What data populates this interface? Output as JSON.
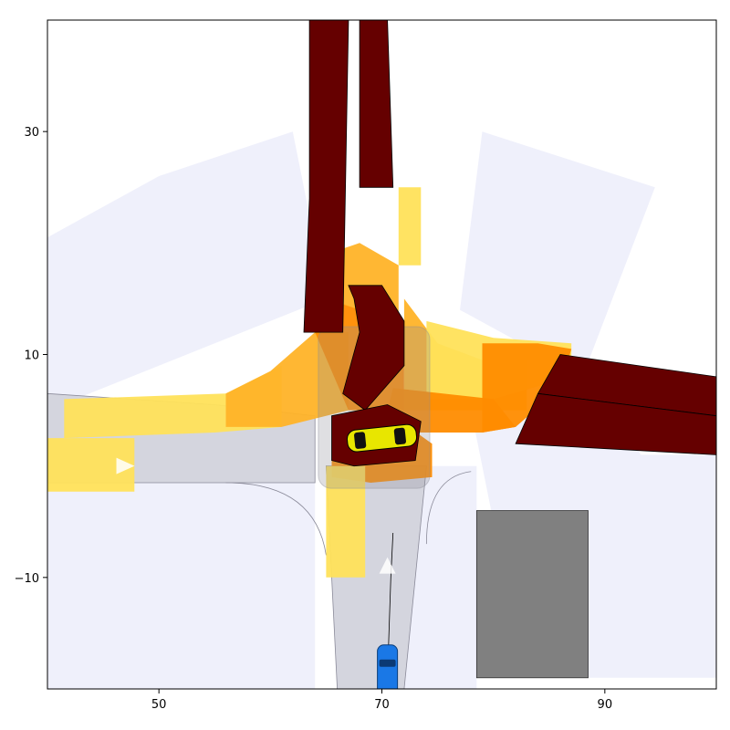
{
  "chart_data": {
    "type": "scatter",
    "title": "",
    "xlabel": "",
    "ylabel": "",
    "xlim": [
      40,
      100
    ],
    "ylim": [
      -20,
      40
    ],
    "x_ticks": [
      50,
      70,
      90
    ],
    "y_ticks": [
      30,
      10,
      -10
    ],
    "x_tick_labels": [
      "50",
      "70",
      "90"
    ],
    "y_tick_labels": [
      "30",
      "10",
      "−10"
    ],
    "grid": false,
    "colors": {
      "road": "#d4d5de",
      "lane_line": "#8a8a99",
      "sensor_fov": "#eff0fb",
      "occupancy_low": "#ffe15a",
      "occupancy_mid": "#ffb328",
      "occupancy_high": "#ff8c00",
      "occupied_dark": "#650000",
      "obstacle": "#808080",
      "ego_vehicle": "#1a78e6",
      "other_vehicle": "#e8e600",
      "marker": "#ffffff"
    },
    "road_polygons": [
      {
        "name": "west-road",
        "points": [
          [
            40,
            6.5
          ],
          [
            55,
            5.5
          ],
          [
            64,
            4.5
          ],
          [
            64,
            -1.5
          ],
          [
            55,
            -1.5
          ],
          [
            40,
            -1.5
          ]
        ]
      },
      {
        "name": "south-road",
        "points": [
          [
            65,
            0
          ],
          [
            74,
            0
          ],
          [
            72,
            -20
          ],
          [
            66,
            -20
          ]
        ]
      }
    ],
    "fov_sectors": [
      {
        "name": "fov-north-west",
        "points": [
          [
            40,
            20.5
          ],
          [
            50,
            26
          ],
          [
            62,
            30
          ],
          [
            65,
            15
          ],
          [
            40,
            5
          ]
        ]
      },
      {
        "name": "fov-north-east",
        "points": [
          [
            79,
            30
          ],
          [
            94.5,
            25
          ],
          [
            88,
            8
          ],
          [
            77,
            14
          ]
        ]
      },
      {
        "name": "fov-lower-left",
        "points": [
          [
            40,
            5
          ],
          [
            64,
            5
          ],
          [
            64,
            -20
          ],
          [
            40,
            -20
          ]
        ]
      },
      {
        "name": "fov-lower-mid",
        "points": [
          [
            74,
            0
          ],
          [
            78.5,
            0
          ],
          [
            78.5,
            -20
          ],
          [
            72,
            -20
          ]
        ]
      },
      {
        "name": "fov-lower-right",
        "points": [
          [
            88.5,
            1
          ],
          [
            100,
            1
          ],
          [
            100,
            -19
          ],
          [
            88.5,
            -19
          ]
        ]
      },
      {
        "name": "fov-east-sector",
        "points": [
          [
            77,
            10
          ],
          [
            88,
            8
          ],
          [
            100,
            -8
          ],
          [
            80,
            -5
          ]
        ]
      }
    ],
    "occupancy_polygons": [
      {
        "level": "low",
        "points": [
          [
            41.5,
            6
          ],
          [
            56,
            6.5
          ],
          [
            61,
            9
          ],
          [
            61,
            3.5
          ],
          [
            55,
            3
          ],
          [
            41.5,
            2.5
          ]
        ]
      },
      {
        "level": "low",
        "points": [
          [
            40,
            2.5
          ],
          [
            47.8,
            2.5
          ],
          [
            47.8,
            -2.3
          ],
          [
            40,
            -2.3
          ]
        ]
      },
      {
        "level": "mid",
        "points": [
          [
            56,
            6.5
          ],
          [
            60,
            8.5
          ],
          [
            64,
            12
          ],
          [
            67,
            12
          ],
          [
            67,
            5
          ],
          [
            61,
            3.5
          ],
          [
            56,
            3.5
          ]
        ]
      },
      {
        "level": "high",
        "points": [
          [
            64,
            12
          ],
          [
            65.5,
            15
          ],
          [
            68,
            14
          ],
          [
            72,
            12
          ],
          [
            72,
            5
          ],
          [
            67,
            5
          ]
        ]
      },
      {
        "level": "mid",
        "points": [
          [
            65,
            15
          ],
          [
            65,
            19
          ],
          [
            68,
            20
          ],
          [
            71.5,
            18
          ],
          [
            71.5,
            12
          ],
          [
            68,
            14
          ]
        ]
      },
      {
        "level": "low",
        "points": [
          [
            71.5,
            18
          ],
          [
            71.5,
            25
          ],
          [
            73.5,
            25
          ],
          [
            73.5,
            18
          ]
        ]
      },
      {
        "level": "mid",
        "points": [
          [
            72,
            15
          ],
          [
            75,
            11
          ],
          [
            79,
            9.5
          ],
          [
            83,
            9.5
          ],
          [
            83,
            5
          ],
          [
            72,
            5
          ]
        ]
      },
      {
        "level": "low",
        "points": [
          [
            74,
            13
          ],
          [
            80,
            11.5
          ],
          [
            87,
            11
          ],
          [
            87,
            8
          ],
          [
            80,
            6
          ],
          [
            74,
            6
          ]
        ]
      },
      {
        "level": "high",
        "points": [
          [
            79,
            11
          ],
          [
            84,
            11
          ],
          [
            87,
            10.5
          ],
          [
            86,
            7
          ],
          [
            82,
            3.5
          ],
          [
            79,
            3
          ]
        ]
      },
      {
        "level": "high",
        "points": [
          [
            71,
            7
          ],
          [
            80,
            6
          ],
          [
            82,
            3.5
          ],
          [
            79,
            3
          ],
          [
            70,
            3
          ]
        ]
      },
      {
        "level": "high",
        "points": [
          [
            65.5,
            4
          ],
          [
            71,
            4.5
          ],
          [
            74.5,
            2
          ],
          [
            74.5,
            -1
          ],
          [
            69,
            -1.5
          ],
          [
            65.5,
            -1
          ]
        ]
      },
      {
        "level": "low",
        "points": [
          [
            65,
            0
          ],
          [
            68.5,
            0
          ],
          [
            68.5,
            -10
          ],
          [
            65,
            -10
          ]
        ]
      }
    ],
    "occupied_regions": [
      {
        "name": "north-lane-left",
        "points": [
          [
            63.5,
            40
          ],
          [
            67,
            40
          ],
          [
            66.5,
            12
          ],
          [
            63,
            12
          ],
          [
            63.5,
            24
          ]
        ]
      },
      {
        "name": "north-lane-right",
        "points": [
          [
            67,
            40
          ],
          [
            70.5,
            40
          ],
          [
            71,
            25
          ],
          [
            68,
            25
          ],
          [
            68,
            40
          ]
        ]
      },
      {
        "name": "curve-segment",
        "points": [
          [
            67,
            16.2
          ],
          [
            70,
            16.2
          ],
          [
            72,
            13
          ],
          [
            72,
            9
          ],
          [
            68.5,
            5
          ],
          [
            66.5,
            6.5
          ],
          [
            68,
            12
          ],
          [
            67.5,
            15
          ]
        ]
      },
      {
        "name": "box-around-car",
        "points": [
          [
            65.5,
            4.5
          ],
          [
            70.5,
            5.5
          ],
          [
            73.5,
            4
          ],
          [
            73,
            0.5
          ],
          [
            67.5,
            0
          ],
          [
            65.5,
            0.5
          ]
        ]
      },
      {
        "name": "east-lane-upper",
        "points": [
          [
            86,
            10
          ],
          [
            100,
            8
          ],
          [
            100,
            4.5
          ],
          [
            84,
            6.5
          ]
        ]
      },
      {
        "name": "east-lane-lower",
        "points": [
          [
            84,
            6.5
          ],
          [
            100,
            4.5
          ],
          [
            100,
            1
          ],
          [
            82,
            2
          ]
        ]
      }
    ],
    "intersection_box": {
      "x0": 64.3,
      "y0": -2,
      "x1": 74.3,
      "y1": 12.5
    },
    "obstacle": {
      "x0": 78.5,
      "y0": -19,
      "x1": 88.5,
      "y1": -4
    },
    "other_vehicle": {
      "x": 70,
      "y": 2.5
    },
    "ego_vehicle": {
      "x": 70.5,
      "y": -19
    },
    "ego_trajectory": [
      [
        70.5,
        -19
      ],
      [
        70.8,
        -10
      ],
      [
        71,
        -6
      ]
    ],
    "direction_markers": [
      {
        "x": 47,
        "y": 0,
        "direction": "east"
      },
      {
        "x": 70.5,
        "y": -9,
        "direction": "north"
      }
    ]
  }
}
